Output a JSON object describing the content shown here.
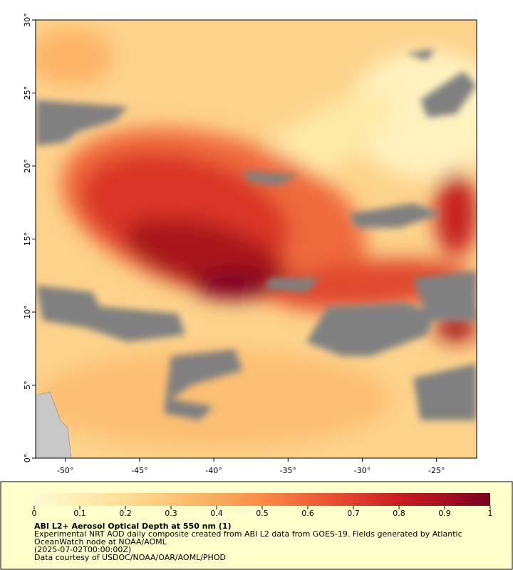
{
  "map": {
    "xlim": [
      -52,
      -22.3
    ],
    "ylim": [
      0,
      30
    ],
    "xticks": [
      {
        "value": -50,
        "label": "-50°"
      },
      {
        "value": -45,
        "label": "-45°"
      },
      {
        "value": -40,
        "label": "-40°"
      },
      {
        "value": -35,
        "label": "-35°"
      },
      {
        "value": -30,
        "label": "-30°"
      },
      {
        "value": -25,
        "label": "-25°"
      }
    ],
    "yticks": [
      {
        "value": 0,
        "label": "0°"
      },
      {
        "value": 5,
        "label": "5°"
      },
      {
        "value": 10,
        "label": "10°"
      },
      {
        "value": 15,
        "label": "15°"
      },
      {
        "value": 20,
        "label": "20°"
      },
      {
        "value": 25,
        "label": "25°"
      },
      {
        "value": 30,
        "label": "30°"
      }
    ]
  },
  "colorbar": {
    "lim": [
      0,
      1
    ],
    "ticks": [
      0,
      0.1,
      0.2,
      0.3,
      0.4,
      0.5,
      0.6,
      0.7,
      0.8,
      0.9,
      1
    ],
    "colors": [
      "#fff8d6",
      "#ffeeb0",
      "#fedd94",
      "#fdc679",
      "#fcaa5c",
      "#f98b45",
      "#f0653a",
      "#e0402c",
      "#c81e22",
      "#a50f22",
      "#7a0022"
    ]
  },
  "title": "ABI L2+ Aerosol Optical Depth at 550 nm (1)",
  "description": [
    "Experimental NRT AOD daily composite created from ABI L2 data from GOES-19. Fields generated by Atlantic",
    "OceanWatch node at NOAA/AOML",
    "(2025-07-02T00:00:00Z)",
    "Data courtesy of USDOC/NOAA/OAR/AOML/PHOD"
  ]
}
